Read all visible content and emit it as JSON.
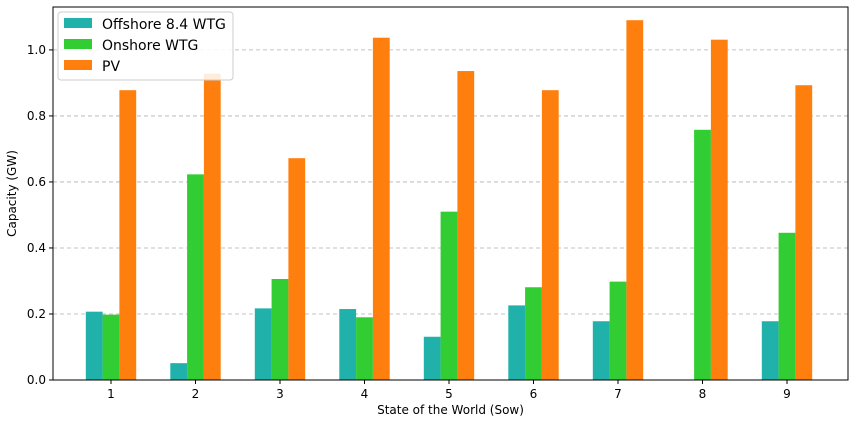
{
  "chart_data": {
    "type": "bar",
    "title": "",
    "xlabel": "State of the World (Sow)",
    "ylabel": "Capacity (GW)",
    "categories": [
      "1",
      "2",
      "3",
      "4",
      "5",
      "6",
      "7",
      "8",
      "9"
    ],
    "ylim": [
      0,
      1.13
    ],
    "yticks": [
      "0.0",
      "0.2",
      "0.4",
      "0.6",
      "0.8",
      "1.0"
    ],
    "grid": "horizontal dashed",
    "legend_position": "top-left",
    "series": [
      {
        "name": "Offshore 8.4 WTG",
        "color": "#20b2aa",
        "values": [
          0.207,
          0.051,
          0.217,
          0.215,
          0.131,
          0.226,
          0.178,
          0.0,
          0.178
        ]
      },
      {
        "name": "Onshore WTG",
        "color": "#32cd32",
        "values": [
          0.198,
          0.623,
          0.306,
          0.19,
          0.51,
          0.281,
          0.298,
          0.758,
          0.446
        ]
      },
      {
        "name": "PV",
        "color": "#ff7f0e",
        "values": [
          0.878,
          0.928,
          0.672,
          1.037,
          0.936,
          0.878,
          1.09,
          1.031,
          0.893
        ]
      }
    ]
  }
}
